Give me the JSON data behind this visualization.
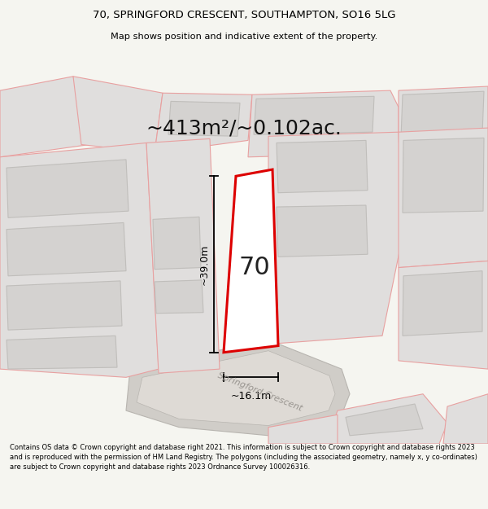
{
  "title_line1": "70, SPRINGFORD CRESCENT, SOUTHAMPTON, SO16 5LG",
  "title_line2": "Map shows position and indicative extent of the property.",
  "area_text": "~413m²/~0.102ac.",
  "label_70": "70",
  "label_width": "~16.1m",
  "label_height": "~39.0m",
  "road_label": "Springford Crescent",
  "footer_text": "Contains OS data © Crown copyright and database right 2021. This information is subject to Crown copyright and database rights 2023 and is reproduced with the permission of HM Land Registry. The polygons (including the associated geometry, namely x, y co-ordinates) are subject to Crown copyright and database rights 2023 Ordnance Survey 100026316.",
  "bg_color": "#f5f5f0",
  "map_bg": "#f2f0ec",
  "main_fill": "#ffffff",
  "main_edge": "#dd0000",
  "neighbor_fill": "#e0dedd",
  "neighbor_edge": "#e8a0a0",
  "plot_edge": "#e8a0a0",
  "road_fill": "#d0cdc8",
  "road_edge": "#b8b5b0",
  "building_fill": "#d4d2d0",
  "building_edge": "#c0bebb"
}
